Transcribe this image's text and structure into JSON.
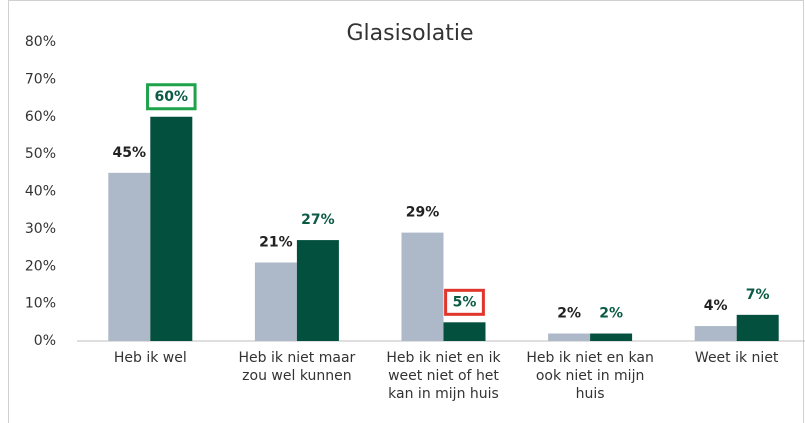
{
  "chart_data": {
    "type": "bar",
    "title": "Glasisolatie",
    "categories": [
      "Heb ik wel",
      "Heb ik niet maar zou wel kunnen",
      "Heb ik niet en ik weet niet of het kan in mijn huis",
      "Heb ik niet en kan ook niet in mijn huis",
      "Weet ik niet"
    ],
    "series": [
      {
        "color": "#adb8c9",
        "label_color": "#222222",
        "values": [
          45,
          21,
          29,
          2,
          4
        ],
        "value_labels": [
          "45%",
          "21%",
          "29%",
          "2%",
          "4%"
        ]
      },
      {
        "color": "#02503d",
        "label_color": "#0a5a44",
        "values": [
          60,
          27,
          5,
          2,
          7
        ],
        "value_labels": [
          "60%",
          "27%",
          "5%",
          "2%",
          "7%"
        ],
        "highlight_colors": [
          "#1ea34a",
          null,
          "#e0352b",
          null,
          null
        ]
      }
    ],
    "ylim": [
      0,
      80
    ],
    "yticks": [
      {
        "value": 0,
        "label": "0%"
      },
      {
        "value": 10,
        "label": "10%"
      },
      {
        "value": 20,
        "label": "20%"
      },
      {
        "value": 30,
        "label": "30%"
      },
      {
        "value": 40,
        "label": "40%"
      },
      {
        "value": 50,
        "label": "50%"
      },
      {
        "value": 60,
        "label": "60%"
      },
      {
        "value": 70,
        "label": "70%"
      },
      {
        "value": 80,
        "label": "80%"
      }
    ],
    "grid": false
  }
}
